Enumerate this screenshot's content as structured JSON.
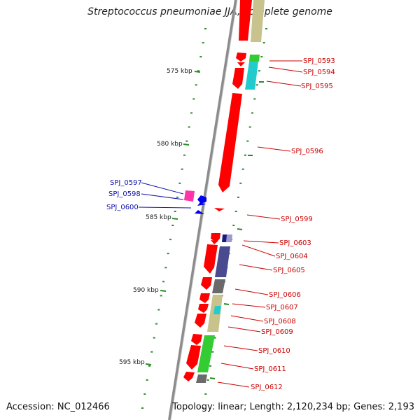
{
  "title": "Streptococcus pneumoniae JJA, complete genome",
  "accession": "Accession: NC_012466",
  "topology": "Topology: linear; Length: 2,120,234 bp; Genes: 2,193",
  "scale": {
    "unit": "kbp",
    "ticks": [
      {
        "kbp": 575,
        "label": "575 kbp"
      },
      {
        "kbp": 580,
        "label": "580 kbp"
      },
      {
        "kbp": 585,
        "label": "585 kbp"
      },
      {
        "kbp": 590,
        "label": "590 kbp"
      },
      {
        "kbp": 595,
        "label": "595 kbp"
      }
    ]
  },
  "colors": {
    "backbone": "#8c8c8c",
    "ticks": "#2a8a2a",
    "cds": "#ff0000",
    "label_plus": "#cc0000",
    "label_minus": "#1010aa"
  },
  "genes": [
    {
      "name": "SPJ_0593",
      "side": "right"
    },
    {
      "name": "SPJ_0594",
      "side": "right"
    },
    {
      "name": "SPJ_0595",
      "side": "right"
    },
    {
      "name": "SPJ_0596",
      "side": "right"
    },
    {
      "name": "SPJ_0597",
      "side": "left"
    },
    {
      "name": "SPJ_0598",
      "side": "left"
    },
    {
      "name": "SPJ_0600",
      "side": "left"
    },
    {
      "name": "SPJ_0599",
      "side": "right"
    },
    {
      "name": "SPJ_0603",
      "side": "right"
    },
    {
      "name": "SPJ_0604",
      "side": "right"
    },
    {
      "name": "SPJ_0605",
      "side": "right"
    },
    {
      "name": "SPJ_0606",
      "side": "right"
    },
    {
      "name": "SPJ_0607",
      "side": "right"
    },
    {
      "name": "SPJ_0608",
      "side": "right"
    },
    {
      "name": "SPJ_0609",
      "side": "right"
    },
    {
      "name": "SPJ_0610",
      "side": "right"
    },
    {
      "name": "SPJ_0611",
      "side": "right"
    },
    {
      "name": "SPJ_0612",
      "side": "right"
    }
  ]
}
